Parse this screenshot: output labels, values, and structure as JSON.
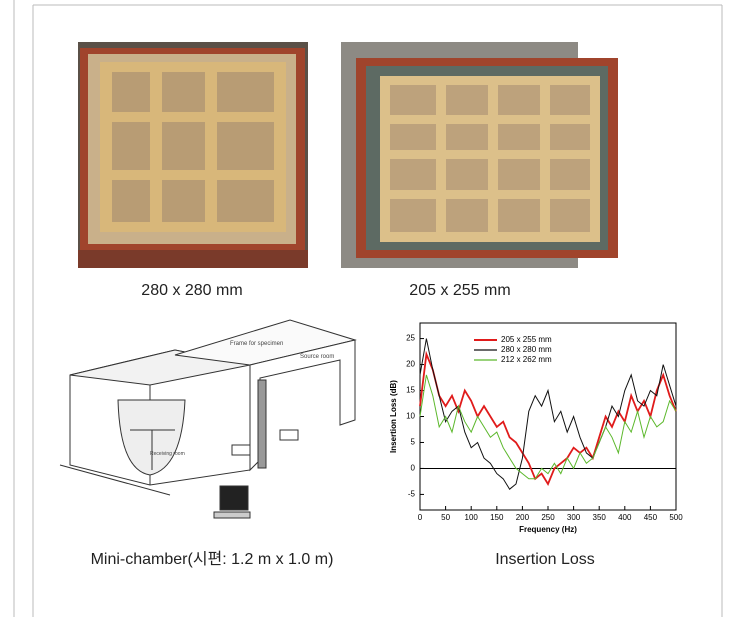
{
  "photos": [
    {
      "caption": "280 x 280 mm"
    },
    {
      "caption": "205 x 255 mm"
    }
  ],
  "diagram": {
    "caption": "Mini-chamber(시편: 1.2 m x 1.0 m)",
    "labels": [
      "Frame for specimen",
      "Source room",
      "Receiving room"
    ]
  },
  "chart_caption": "Insertion Loss",
  "chart_data": {
    "type": "line",
    "x_label": "Frequency (Hz)",
    "y_label": "Insertion Loss (dB)",
    "x": [
      0,
      12.5,
      25,
      37.5,
      50,
      62.5,
      75,
      87.5,
      100,
      112.5,
      125,
      137.5,
      150,
      162.5,
      175,
      187.5,
      200,
      212.5,
      225,
      237.5,
      250,
      262.5,
      275,
      287.5,
      300,
      312.5,
      325,
      337.5,
      350,
      362.5,
      375,
      387.5,
      400,
      412.5,
      425,
      437.5,
      450,
      462.5,
      475,
      487.5,
      500
    ],
    "series": [
      {
        "name": "205 x 255 mm",
        "color": "#e01b1b",
        "values": [
          12,
          22,
          19,
          14,
          12,
          14,
          11,
          15,
          13,
          10,
          12,
          10,
          8,
          9,
          6,
          5,
          3,
          1,
          -2,
          -1,
          -3,
          0,
          1,
          2,
          4,
          3,
          4,
          2,
          6,
          10,
          8,
          11,
          9,
          14,
          11,
          13,
          10,
          15,
          18,
          14,
          11
        ]
      },
      {
        "name": "280 x 280 mm",
        "color": "#111111",
        "values": [
          18,
          25,
          19,
          14,
          9,
          11,
          12,
          7,
          4,
          5,
          2,
          1,
          -1,
          -2,
          -4,
          -3,
          2,
          11,
          14,
          12,
          15,
          9,
          11,
          7,
          10,
          6,
          3,
          2,
          5,
          8,
          12,
          10,
          15,
          18,
          13,
          12,
          15,
          14,
          20,
          16,
          12
        ]
      },
      {
        "name": "212 x 262 mm",
        "color": "#5cb82c",
        "values": [
          10,
          18,
          14,
          8,
          10,
          7,
          12,
          9,
          7,
          10,
          8,
          6,
          7,
          4,
          2,
          0,
          -1,
          -2,
          -2,
          0,
          -1,
          1,
          -1,
          2,
          0,
          3,
          1,
          2,
          5,
          8,
          6,
          3,
          9,
          7,
          11,
          6,
          10,
          8,
          9,
          13,
          11
        ]
      }
    ],
    "xlim": [
      0,
      500
    ],
    "ylim": [
      -8,
      28
    ],
    "xticks": [
      0,
      50,
      100,
      150,
      200,
      250,
      300,
      350,
      400,
      450,
      500
    ],
    "yticks": [
      -5,
      0,
      5,
      10,
      15,
      20,
      25
    ]
  }
}
